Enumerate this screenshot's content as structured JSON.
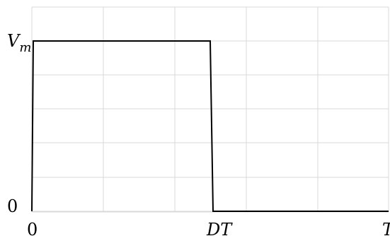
{
  "chart_data": {
    "type": "line",
    "title": "",
    "xlabel": "",
    "ylabel": "",
    "grid": true,
    "legend": "none",
    "x_ticks": [
      "0",
      "DT",
      "T"
    ],
    "y_ticks": [
      "0",
      "V_m"
    ],
    "series": [
      {
        "values": [
          {
            "x": "0",
            "y": "0"
          },
          {
            "x": "0",
            "y": "V_m"
          },
          {
            "x": "DT",
            "y": "V_m"
          },
          {
            "x": "DT",
            "y": "0"
          },
          {
            "x": "T",
            "y": "0"
          }
        ]
      }
    ],
    "colors": {
      "series": "#000000",
      "grid": "#d9d9d9"
    }
  }
}
